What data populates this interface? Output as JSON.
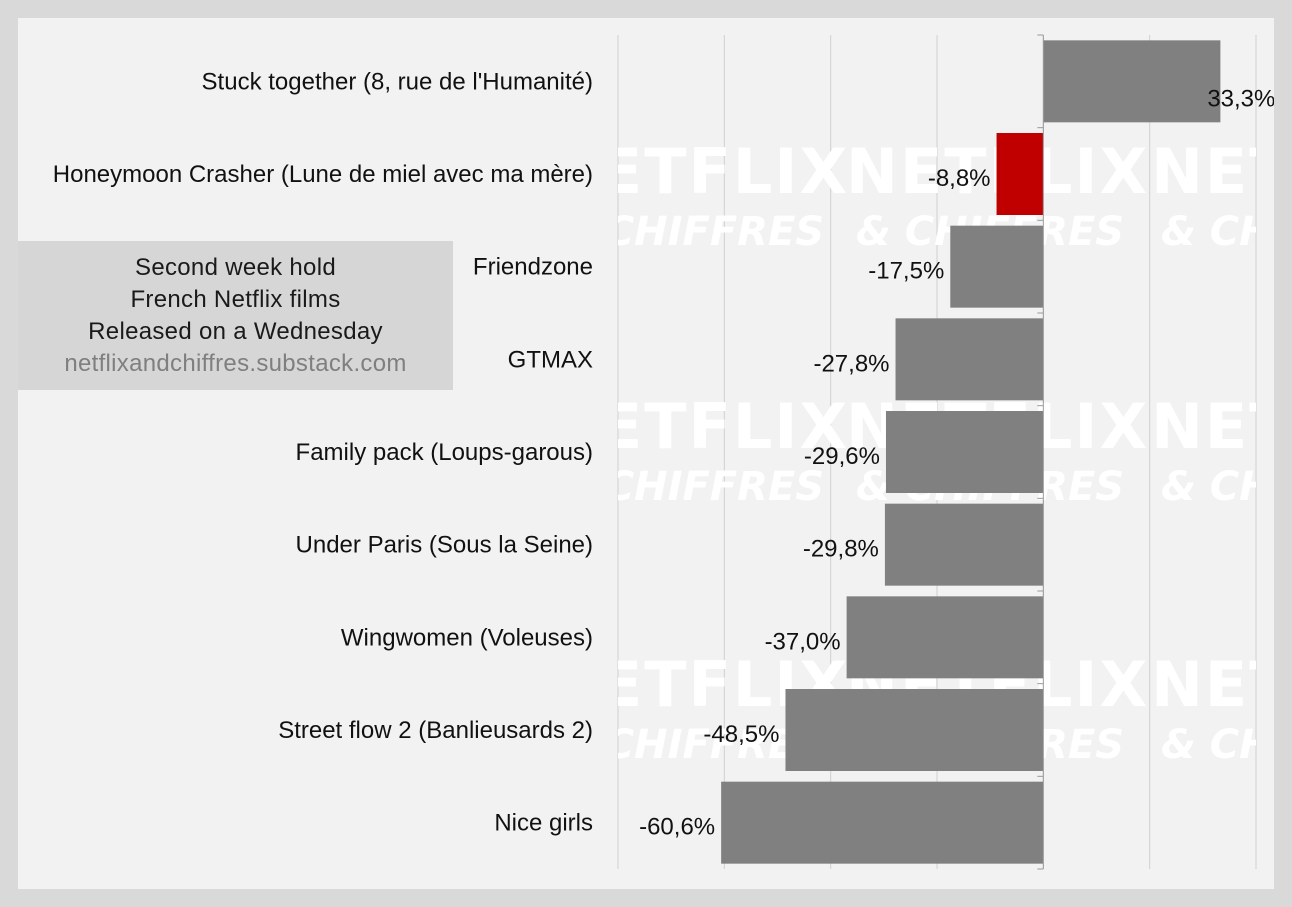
{
  "info_box": {
    "line1": "Second week hold",
    "line2": "French Netflix films",
    "line3": "Released on a Wednesday",
    "url": "netflixandchiffres.substack.com"
  },
  "watermark": {
    "big": "NETFLIX",
    "small": "& CHIFFRES"
  },
  "colors": {
    "background": "#d9d9d9",
    "plot_area": "#f2f2f2",
    "bar_default": "#808080",
    "bar_highlight": "#c00000",
    "gridline": "#d0d0d0"
  },
  "chart_data": {
    "type": "bar",
    "orientation": "horizontal",
    "categories": [
      "Stuck together (8, rue de l'Humanité)",
      "Honeymoon Crasher (Lune de miel avec ma mère)",
      "Friendzone",
      "GTMAX",
      "Family pack (Loups-garous)",
      "Under Paris (Sous la Seine)",
      "Wingwomen (Voleuses)",
      "Street flow 2 (Banlieusards 2)",
      "Nice girls"
    ],
    "values": [
      33.3,
      -8.8,
      -17.5,
      -27.8,
      -29.6,
      -29.8,
      -37.0,
      -48.5,
      -60.6
    ],
    "value_labels": [
      "33,3%",
      "-8,8%",
      "-17,5%",
      "-27,8%",
      "-29,6%",
      "-29,8%",
      "-37,0%",
      "-48,5%",
      "-60,6%"
    ],
    "highlight_index": 1,
    "xlim": [
      -80,
      40
    ],
    "x_gridlines": [
      -80,
      -60,
      -40,
      -20,
      0,
      20,
      40
    ],
    "grid": true,
    "legend": false
  }
}
